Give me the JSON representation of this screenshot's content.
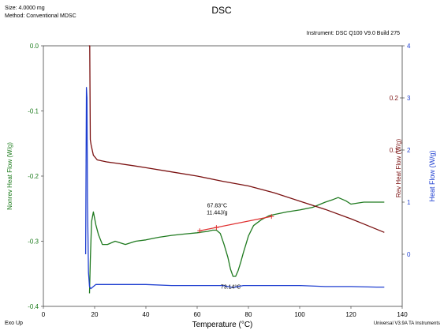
{
  "header": {
    "size": "Size:  4.0000 mg",
    "method": "Method: Conventional MDSC",
    "title": "DSC",
    "instrument": "Instrument: DSC Q100 V9.0 Build 275"
  },
  "footer": {
    "left": "Exo Up",
    "right": "Universal V3.9A TA Instruments"
  },
  "chart_data": {
    "type": "line",
    "title": "DSC",
    "xlabel": "Temperature (°C)",
    "xlim": [
      0,
      140
    ],
    "xticks": [
      "0",
      "20",
      "40",
      "60",
      "80",
      "100",
      "120",
      "140"
    ],
    "axes": {
      "left": {
        "label": "Nonrev Heat Flow (W/g)",
        "lim": [
          -0.4,
          0.0
        ],
        "ticks": [
          "0.0",
          "-0.1",
          "-0.2",
          "-0.3",
          "-0.4"
        ],
        "color": "#1a7a1a"
      },
      "rev": {
        "label": "Rev Heat Flow (W/g)",
        "lim": [
          -0.2,
          0.3
        ],
        "ticks": [
          "0.1",
          "0.2"
        ],
        "color": "#7a1010"
      },
      "right": {
        "label": "Heat Flow (W/g)",
        "lim": [
          -1,
          4
        ],
        "ticks": [
          "0",
          "1",
          "2",
          "3",
          "4"
        ],
        "color": "#1f3fd0"
      }
    },
    "series": [
      {
        "axis": "left",
        "color": "#1f7a1f",
        "dashed": false,
        "x": [
          18,
          18.3,
          18.8,
          19.5,
          20.5,
          21.5,
          23,
          25,
          28,
          32,
          36,
          40,
          45,
          50,
          55,
          60,
          62,
          64,
          66,
          67.5,
          69,
          70.5,
          72,
          73,
          74,
          75,
          76,
          77,
          78,
          79,
          80,
          82,
          85,
          88,
          90,
          95,
          100,
          105,
          110,
          113,
          115,
          118,
          120,
          125,
          130,
          133
        ],
        "y": [
          -0.38,
          -0.33,
          -0.27,
          -0.255,
          -0.275,
          -0.29,
          -0.305,
          -0.305,
          -0.3,
          -0.305,
          -0.3,
          -0.298,
          -0.294,
          -0.291,
          -0.289,
          -0.287,
          -0.286,
          -0.285,
          -0.283,
          -0.283,
          -0.288,
          -0.305,
          -0.325,
          -0.343,
          -0.354,
          -0.354,
          -0.345,
          -0.332,
          -0.318,
          -0.305,
          -0.292,
          -0.276,
          -0.267,
          -0.261,
          -0.259,
          -0.255,
          -0.252,
          -0.248,
          -0.24,
          -0.236,
          -0.233,
          -0.238,
          -0.243,
          -0.24,
          -0.24,
          -0.24
        ]
      },
      {
        "axis": "rev",
        "color": "#7a1010",
        "dashed": false,
        "x": [
          17.8,
          18.1,
          18.3,
          18.6,
          19.5,
          21,
          23,
          25,
          28,
          35,
          40,
          50,
          60,
          70,
          80,
          90,
          100,
          110,
          120,
          125,
          130,
          133
        ],
        "y": [
          0.3,
          0.3,
          0.12,
          0.11,
          0.09,
          0.081,
          0.079,
          0.077,
          0.075,
          0.07,
          0.066,
          0.058,
          0.05,
          0.04,
          0.031,
          0.018,
          0.002,
          -0.014,
          -0.032,
          -0.042,
          -0.052,
          -0.058
        ]
      },
      {
        "axis": "right",
        "color": "#1f3fd0",
        "dashed": false,
        "x": [
          16.5,
          16.8,
          17,
          17.2,
          17.4,
          17.6,
          18,
          18.5,
          19.5,
          20.5,
          22,
          30,
          40,
          50,
          60,
          70,
          72,
          74,
          76,
          78,
          80,
          85,
          90,
          100,
          110,
          120,
          130,
          133
        ],
        "y": [
          0,
          3.2,
          3.0,
          1.0,
          0.4,
          -0.35,
          -0.62,
          -0.66,
          -0.62,
          -0.58,
          -0.58,
          -0.58,
          -0.58,
          -0.6,
          -0.6,
          -0.6,
          -0.62,
          -0.64,
          -0.62,
          -0.6,
          -0.6,
          -0.6,
          -0.6,
          -0.6,
          -0.62,
          -0.62,
          -0.63,
          -0.63
        ]
      }
    ],
    "tangents": [
      {
        "color": "#e03030",
        "x": [
          61,
          89
        ],
        "y": [
          -0.284,
          -0.262
        ]
      }
    ],
    "markers": [
      {
        "color": "#e03030",
        "x": 61,
        "y": -0.284
      },
      {
        "color": "#e03030",
        "x": 67.5,
        "y": -0.279
      },
      {
        "color": "#e03030",
        "x": 89,
        "y": -0.262
      }
    ],
    "annotations": [
      {
        "lines": [
          "67.83°C",
          "11.44J/g"
        ],
        "x": 67.8,
        "y": -0.248
      },
      {
        "lines": [
          "73.14°C"
        ],
        "x": 73.1,
        "y": -0.373
      }
    ]
  }
}
